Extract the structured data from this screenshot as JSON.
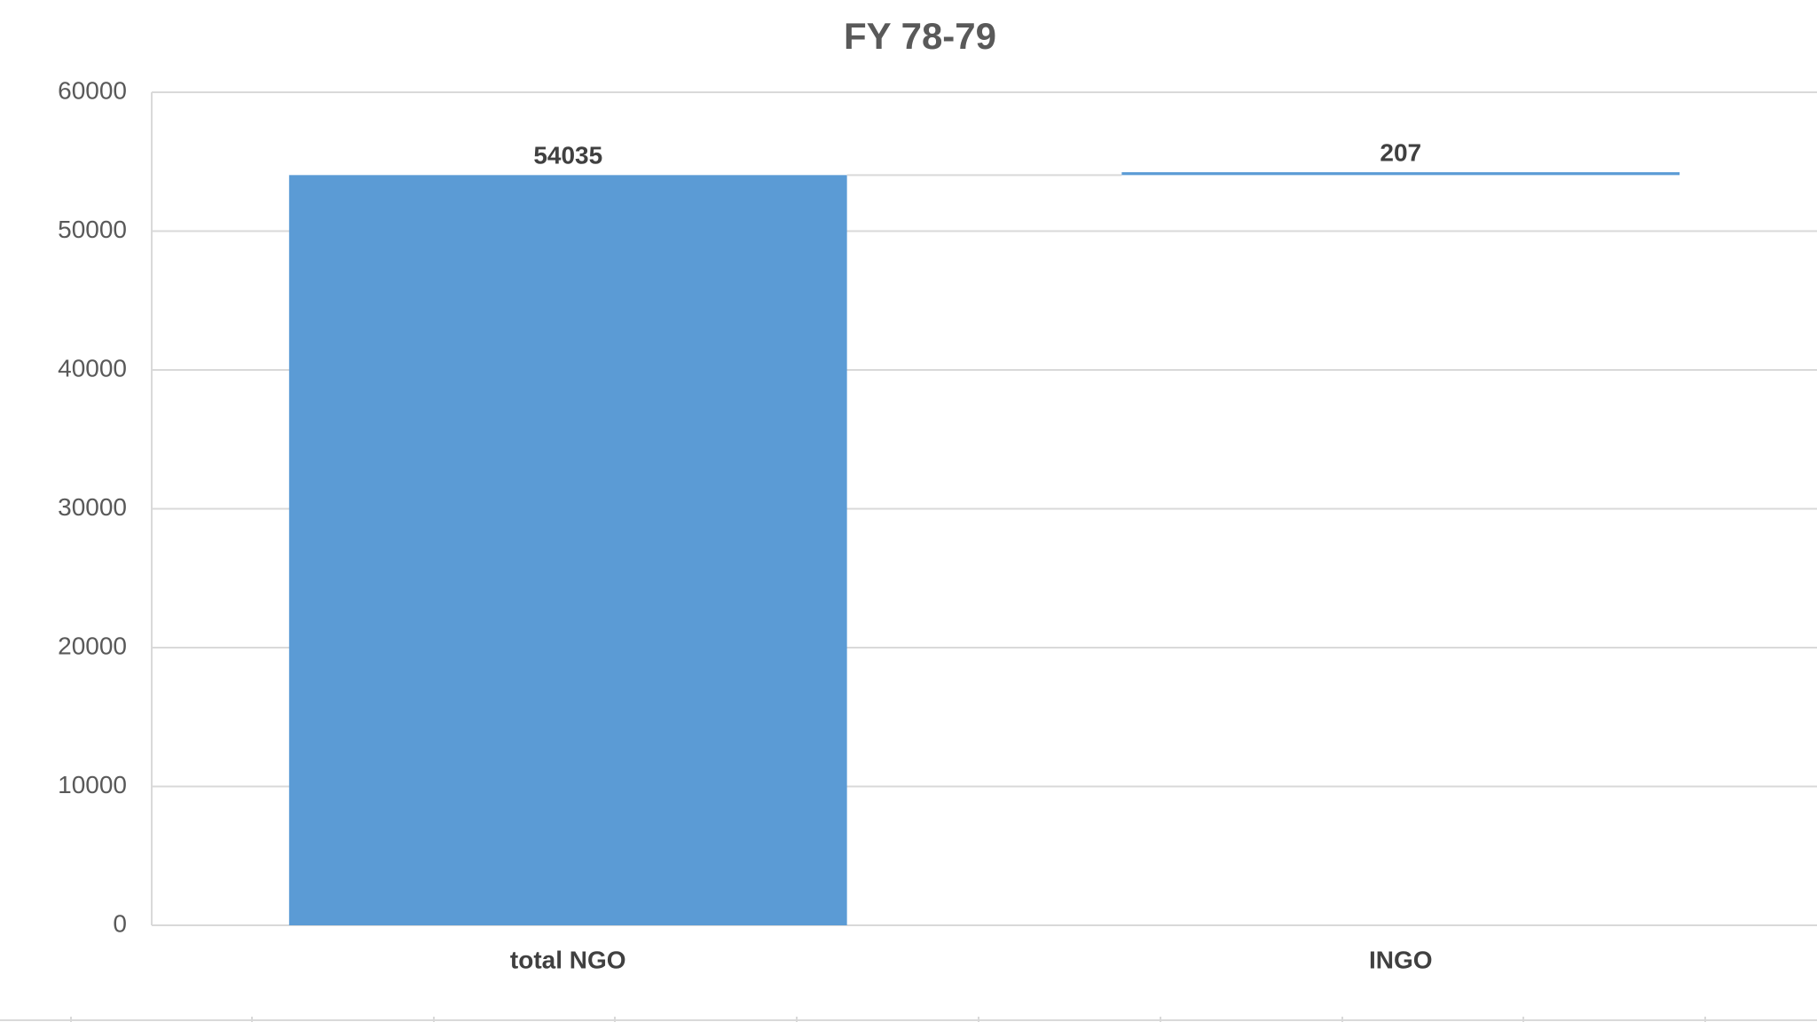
{
  "chart_data": {
    "type": "waterfall",
    "title": "FY 78-79",
    "categories": [
      "total NGO",
      "INGO"
    ],
    "values": [
      54035,
      207
    ],
    "color": "#5b9bd5",
    "ylim": [
      0,
      60000
    ],
    "yticks": [
      0,
      10000,
      20000,
      30000,
      40000,
      50000,
      60000
    ],
    "grid": true
  }
}
